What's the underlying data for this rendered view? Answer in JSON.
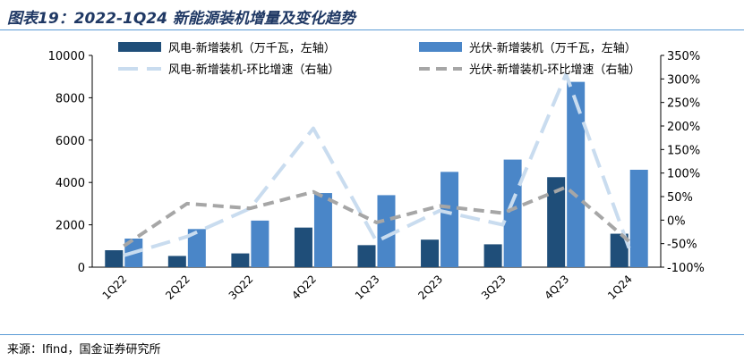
{
  "title": "图表19：2022-1Q24 新能源装机增量及变化趋势",
  "source": "来源：Ifind，国金证券研究所",
  "chart_data": {
    "type": "bar",
    "categories": [
      "1Q22",
      "2Q22",
      "3Q22",
      "4Q22",
      "1Q23",
      "2Q23",
      "3Q23",
      "4Q23",
      "1Q24"
    ],
    "series": [
      {
        "name": "风电-新增装机（万千瓦，左轴）",
        "kind": "bar",
        "axis": "left",
        "color": "#1f4e79",
        "values": [
          800,
          530,
          650,
          1870,
          1040,
          1300,
          1080,
          4250,
          1580
        ]
      },
      {
        "name": "光伏-新增装机（万千瓦，左轴）",
        "kind": "bar",
        "axis": "left",
        "color": "#4a86c8",
        "values": [
          1350,
          1800,
          2200,
          3500,
          3400,
          4500,
          5080,
          8750,
          4600
        ]
      },
      {
        "name": "风电-新增装机-环比增速（右轴）",
        "kind": "line",
        "axis": "right",
        "color": "#c9dcef",
        "dash": "dash-long",
        "values": [
          -75,
          -35,
          25,
          195,
          -45,
          20,
          -10,
          310,
          -60
        ]
      },
      {
        "name": "光伏-新增装机-环比增速（右轴）",
        "kind": "line",
        "axis": "right",
        "color": "#a6a6a6",
        "dash": "dash",
        "values": [
          -55,
          35,
          25,
          60,
          -5,
          30,
          15,
          70,
          -45
        ]
      }
    ],
    "yleft": {
      "ticks": [
        0,
        2000,
        4000,
        6000,
        8000,
        10000
      ],
      "lim": [
        0,
        10000
      ]
    },
    "yright": {
      "ticks": [
        -100,
        -50,
        0,
        50,
        100,
        150,
        200,
        250,
        300,
        350
      ],
      "tick_labels": [
        "-100%",
        "-50%",
        "0%",
        "50%",
        "100%",
        "150%",
        "200%",
        "250%",
        "300%",
        "350%"
      ],
      "lim": [
        -100,
        350
      ]
    },
    "legend": "top",
    "grid": false
  }
}
